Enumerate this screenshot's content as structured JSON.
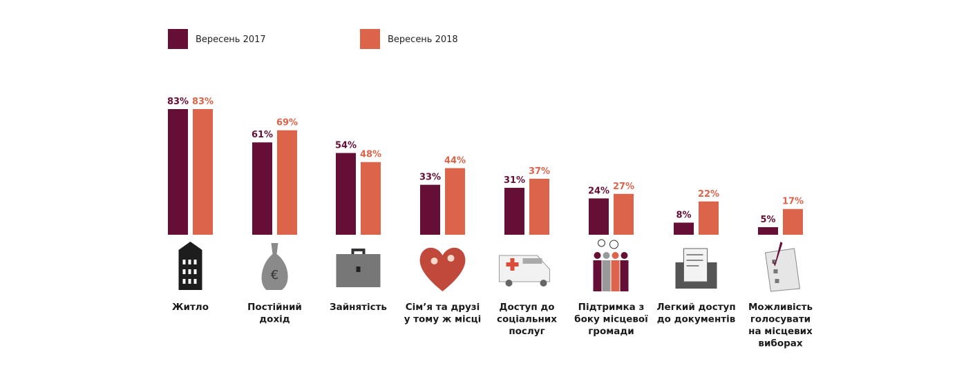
{
  "chart_data": {
    "type": "bar",
    "title": "",
    "xlabel": "",
    "ylabel": "",
    "ylim": [
      0,
      83
    ],
    "grid": false,
    "legend_placement": "top-left",
    "categories": [
      [
        "Житло"
      ],
      [
        "Постійний",
        "дохід"
      ],
      [
        "Зайнятість"
      ],
      [
        "Сім’я та друзі",
        "у тому ж місці"
      ],
      [
        "Доступ до",
        "соціальних",
        "послуг"
      ],
      [
        "Підтримка з",
        "боку місцевої",
        "громади"
      ],
      [
        "Легкий доступ",
        "до документів"
      ],
      [
        "Можливість",
        "голосувати",
        "на місцевих",
        "виборах"
      ]
    ],
    "icons": [
      "house-icon",
      "money-bag-icon",
      "briefcase-icon",
      "heart-family-icon",
      "ambulance-icon",
      "community-people-icon",
      "documents-folder-icon",
      "ballot-icon"
    ],
    "series": [
      {
        "name": "Вересень 2017",
        "color": "#650e36",
        "values": [
          83,
          61,
          54,
          33,
          31,
          24,
          8,
          5
        ]
      },
      {
        "name": "Вересень 2018",
        "color": "#dc644a",
        "values": [
          83,
          69,
          48,
          44,
          37,
          27,
          22,
          17
        ]
      }
    ],
    "value_suffix": "%"
  }
}
